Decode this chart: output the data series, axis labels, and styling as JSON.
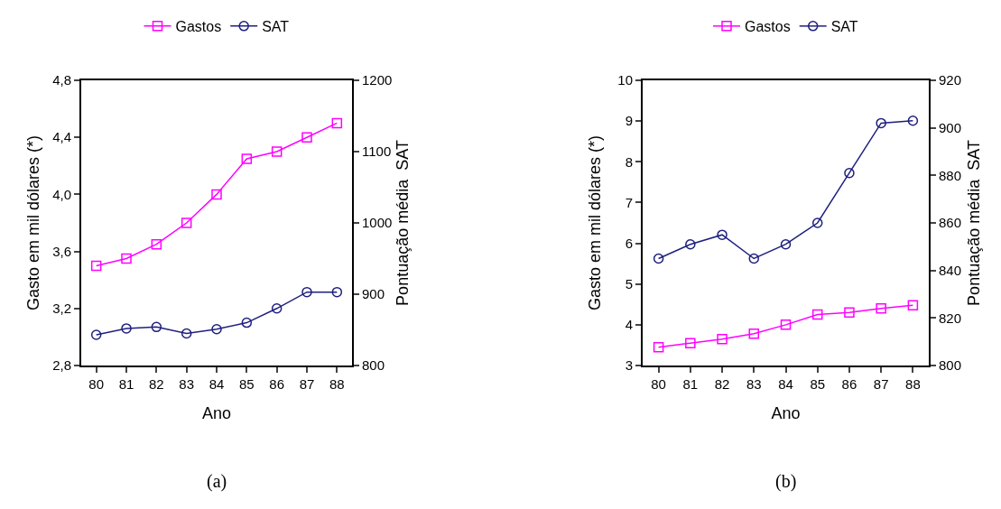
{
  "chart_data": [
    {
      "type": "line",
      "categories": [
        "80",
        "81",
        "82",
        "83",
        "84",
        "85",
        "86",
        "87",
        "88"
      ],
      "xlabel": "Ano",
      "ylabel": "Gasto em mil dólares (*)",
      "y2label": "Pontuação média  SAT",
      "ylim": [
        2.8,
        4.8
      ],
      "yticks": [
        {
          "value": 2.8,
          "label": "2,8"
        },
        {
          "value": 3.2,
          "label": "3,2"
        },
        {
          "value": 3.6,
          "label": "3,6"
        },
        {
          "value": 4.0,
          "label": "4,0"
        },
        {
          "value": 4.4,
          "label": "4,4"
        },
        {
          "value": 4.8,
          "label": "4,8"
        }
      ],
      "y2lim": [
        800,
        1200
      ],
      "y2ticks": [
        800,
        900,
        1000,
        1100,
        1200
      ],
      "grid": false,
      "legend": "top",
      "line_style": "solid",
      "annotations": [
        "(a)"
      ],
      "series": [
        {
          "name": "Gastos",
          "color": "#ff00ff",
          "marker": "square",
          "values": [
            3.5,
            3.55,
            3.65,
            3.8,
            4.0,
            4.25,
            4.3,
            4.4,
            4.5
          ]
        },
        {
          "name": "SAT",
          "color": "#1f1f7f",
          "marker": "circle",
          "axis": "y2",
          "values": [
            843,
            852,
            854,
            845,
            851,
            860,
            880,
            903,
            903
          ]
        }
      ]
    },
    {
      "type": "line",
      "categories": [
        "80",
        "81",
        "82",
        "83",
        "84",
        "85",
        "86",
        "87",
        "88"
      ],
      "xlabel": "Ano",
      "ylabel": "Gasto em mil dólares (*)",
      "y2label": "Pontuação média  SAT",
      "ylim": [
        3,
        10
      ],
      "yticks": [
        3,
        4,
        5,
        6,
        7,
        8,
        9,
        10
      ],
      "y2lim": [
        800,
        920
      ],
      "y2ticks": [
        800,
        820,
        840,
        860,
        880,
        900,
        920
      ],
      "grid": false,
      "legend": "top",
      "line_style": "solid",
      "annotations": [
        "(b)"
      ],
      "series": [
        {
          "name": "Gastos",
          "color": "#ff00ff",
          "marker": "square",
          "values": [
            3.45,
            3.55,
            3.65,
            3.78,
            4.0,
            4.25,
            4.3,
            4.4,
            4.48
          ]
        },
        {
          "name": "SAT",
          "color": "#1f1f7f",
          "marker": "circle",
          "axis": "y2",
          "values": [
            845,
            851,
            855,
            845,
            851,
            860,
            881,
            902,
            903
          ]
        }
      ]
    }
  ]
}
